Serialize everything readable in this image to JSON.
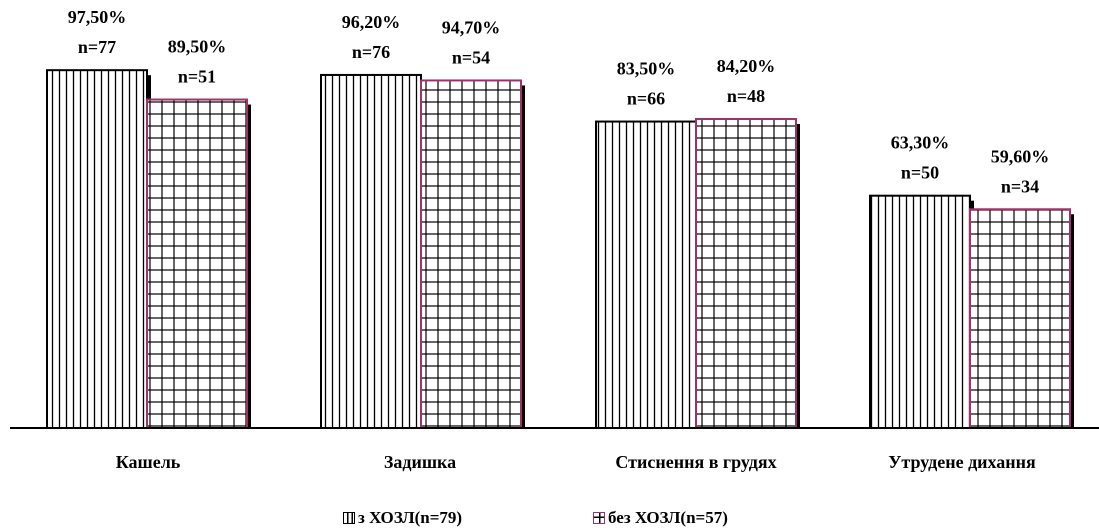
{
  "chart_data": {
    "type": "bar",
    "categories": [
      "Кашель",
      "Задишка",
      "Стиснення в грудях",
      "Утрудене дихання"
    ],
    "series": [
      {
        "name": "з ХОЗЛ(n=79)",
        "values": [
          97.5,
          96.2,
          83.5,
          63.3
        ],
        "value_labels": [
          "97,50%",
          "96,20%",
          "83,50%",
          "63,30%"
        ],
        "n_labels": [
          "n=77",
          "n=76",
          "n=66",
          "n=50"
        ],
        "pattern": "vertical-lines",
        "border_color": "#000000"
      },
      {
        "name": "без ХОЗЛ(n=57)",
        "values": [
          89.5,
          94.7,
          84.2,
          59.6
        ],
        "value_labels": [
          "89,50%",
          "94,70%",
          "84,20%",
          "59,60%"
        ],
        "n_labels": [
          "n=51",
          "n=54",
          "n=48",
          "n=34"
        ],
        "pattern": "grid",
        "border_color": "#a0306a"
      }
    ],
    "ylim": [
      0,
      100
    ],
    "grid": false,
    "legend_position": "bottom"
  }
}
